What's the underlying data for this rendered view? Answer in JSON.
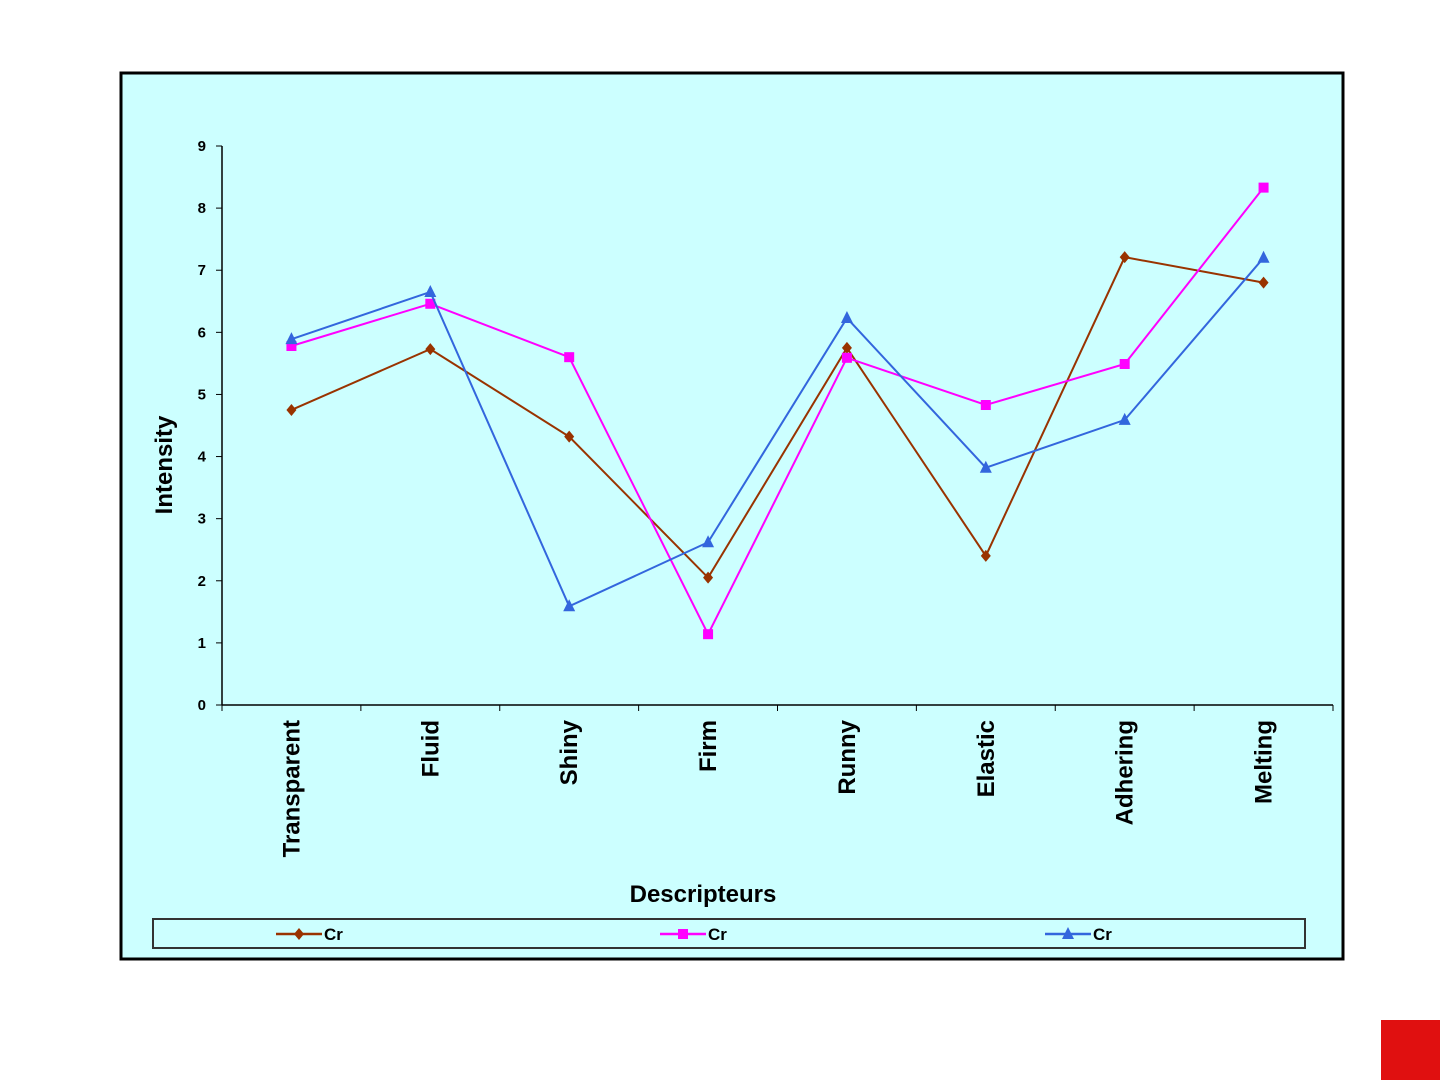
{
  "chart_data": {
    "type": "line",
    "title": "",
    "xlabel": "Descripteurs",
    "ylabel": "Intensity",
    "ylim": [
      0,
      9
    ],
    "yticks": [
      0,
      1,
      2,
      3,
      4,
      5,
      6,
      7,
      8,
      9
    ],
    "grid": false,
    "legend_position": "bottom",
    "categories": [
      "Transparent",
      "Fluid",
      "Shiny",
      "Firm",
      "Runny",
      "Elastic",
      "Adhering",
      "Melting"
    ],
    "series": [
      {
        "name": "Cr",
        "color": "#993300",
        "marker": "diamond",
        "values": [
          4.75,
          5.73,
          4.32,
          2.05,
          5.75,
          2.4,
          7.21,
          6.8
        ]
      },
      {
        "name": "Cr",
        "color": "#ff00ff",
        "marker": "square",
        "values": [
          5.78,
          6.46,
          5.6,
          1.14,
          5.59,
          4.83,
          5.49,
          8.33
        ]
      },
      {
        "name": "Cr",
        "color": "#3366dd",
        "marker": "triangle",
        "values": [
          5.89,
          6.65,
          1.59,
          2.62,
          6.23,
          3.82,
          4.59,
          7.2
        ]
      }
    ],
    "background_color": "#ccffff"
  }
}
